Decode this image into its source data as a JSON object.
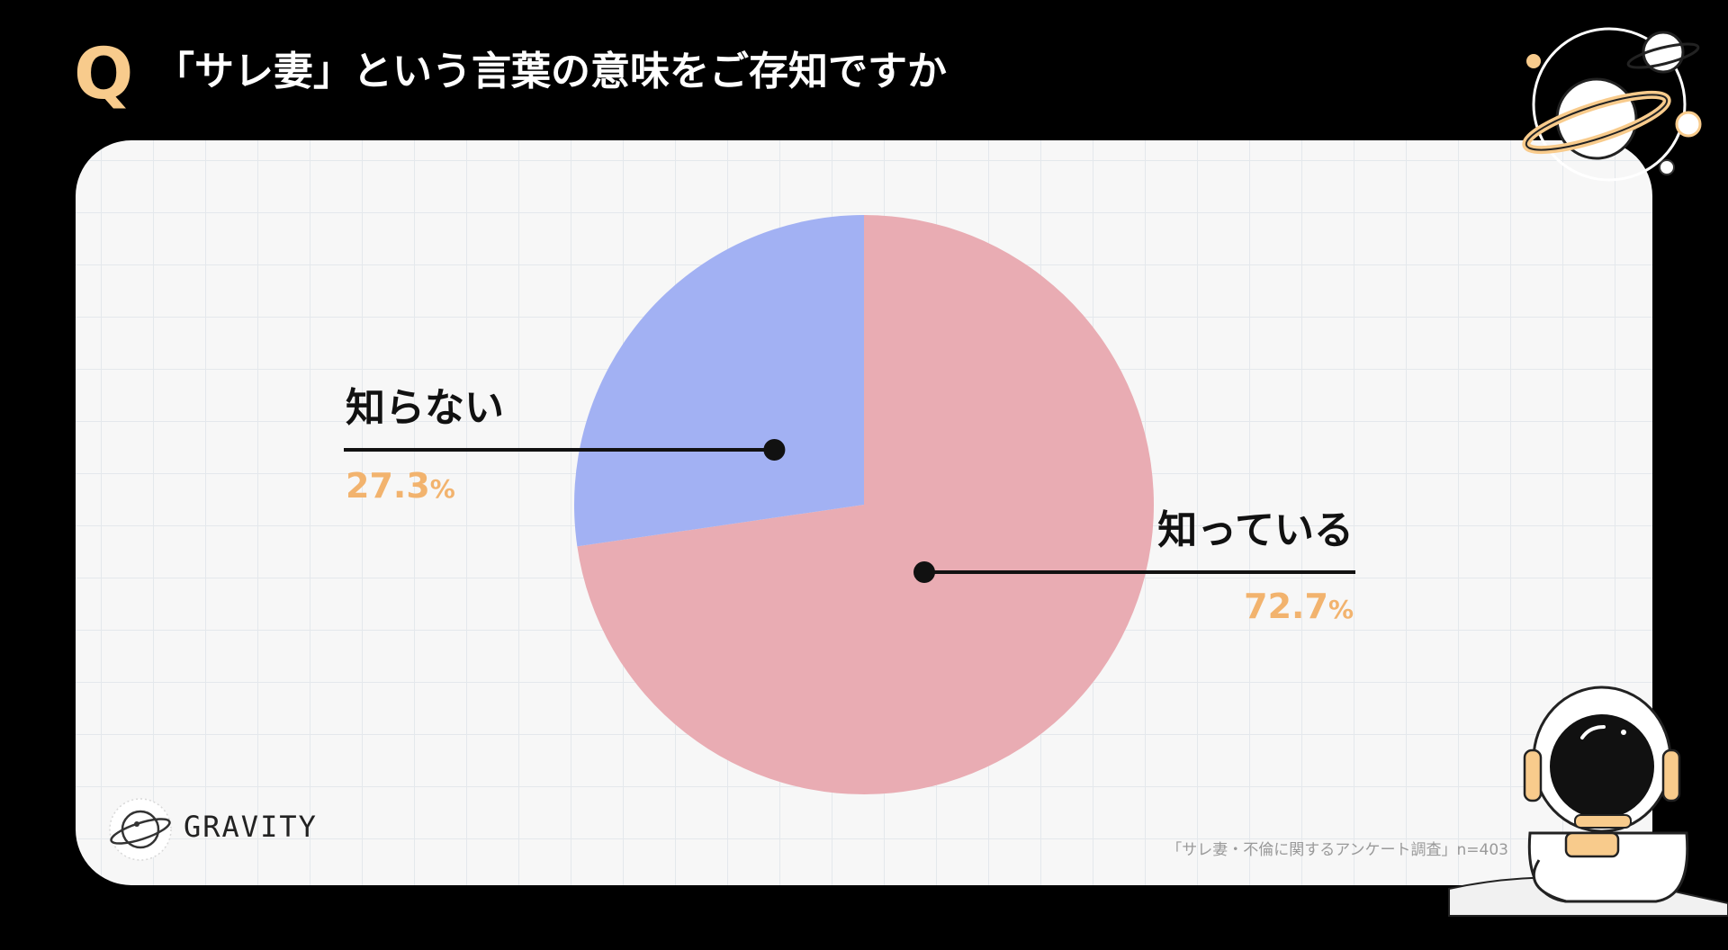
{
  "header": {
    "q_label": "Q",
    "question": "「サレ妻」という言葉の意味をご存知ですか"
  },
  "chart_data": {
    "type": "pie",
    "slices": [
      {
        "label": "知っている",
        "value": 72.7,
        "display": "72.7",
        "unit": "%",
        "color": "#E9ACB3"
      },
      {
        "label": "知らない",
        "value": 27.3,
        "display": "27.3",
        "unit": "%",
        "color": "#A2B1F3"
      }
    ],
    "start": "12 o'clock",
    "direction": "clockwise",
    "legend": "callout labels beside each slice"
  },
  "footer": {
    "brand": "GRAVITY",
    "source": "「サレ妻・不倫に関するアンケート調査」n=403"
  },
  "colors": {
    "background": "#000000",
    "panel": "#F7F7F7",
    "grid": "#E4E8EC",
    "accent": "#F8CB8C",
    "value_text": "#F2B36E"
  },
  "icons": [
    "planet-icon",
    "astronaut-illustration",
    "gravity-logo-icon"
  ]
}
